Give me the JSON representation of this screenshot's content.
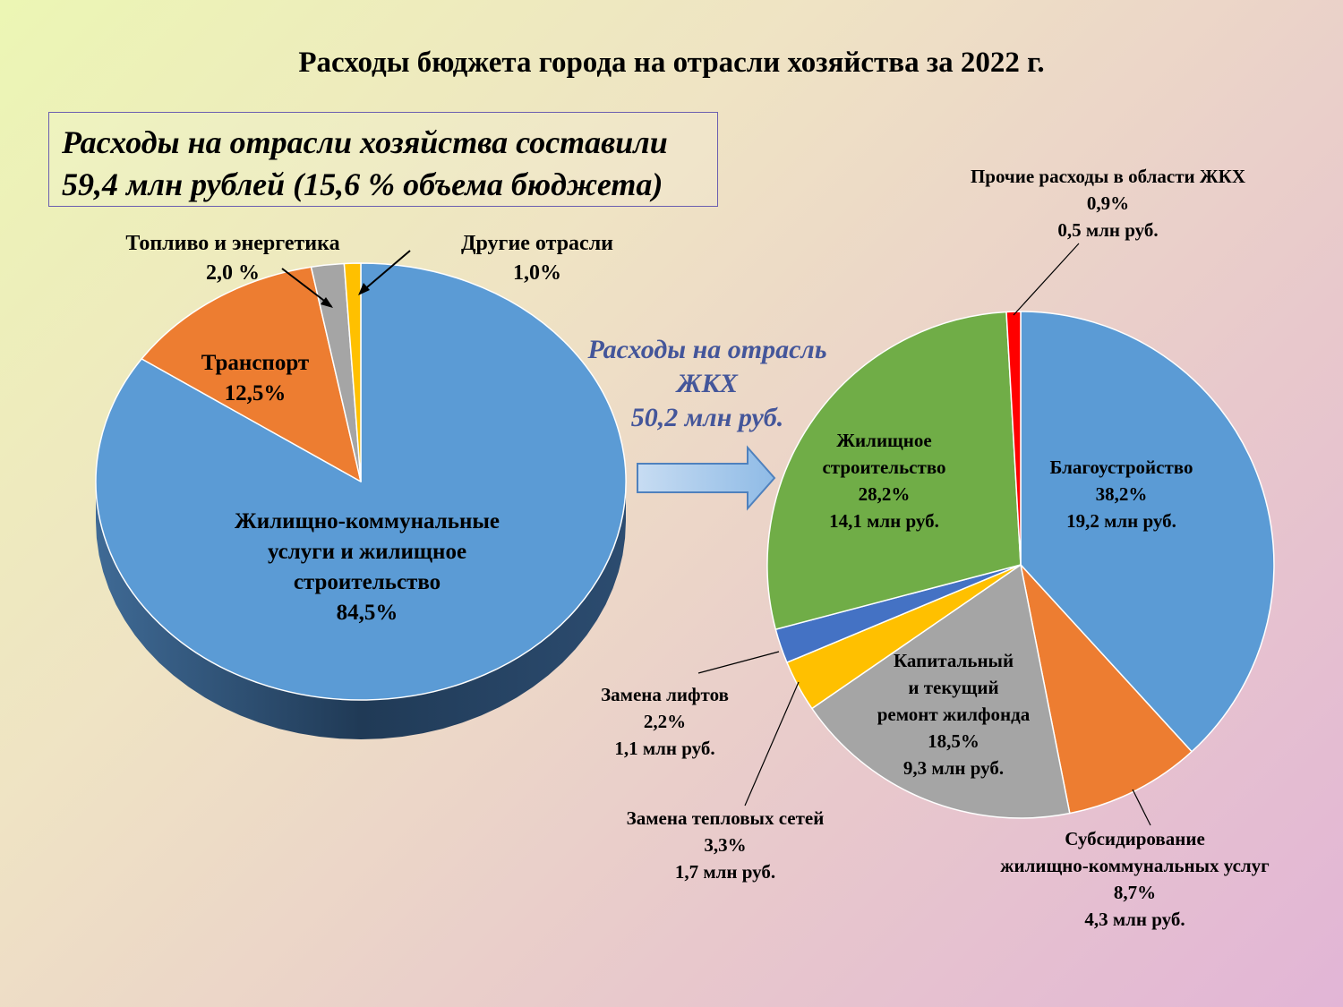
{
  "title": "Расходы бюджета города на отрасли хозяйства за 2022 г.",
  "callout": {
    "line1": "Расходы на отрасли хозяйства составили",
    "line2": "59,4 млн рублей  (15,6 % объема бюджета)"
  },
  "jkx_heading": {
    "line1": "Расходы на отрасль",
    "line2": "ЖКХ",
    "line3": "50,2 млн руб."
  },
  "colors": {
    "blue": "#5b9bd5",
    "orange": "#ed7d31",
    "gray": "#a5a5a5",
    "yellow": "#ffc000",
    "green": "#70ad47",
    "dark_blue": "#4472c4",
    "red": "#ff0000",
    "heading_blue": "#44569a"
  },
  "chart_data": [
    {
      "type": "pie",
      "title": "",
      "slices": [
        {
          "label": "Жилищно-коммунальные услуги и жилищное строительство",
          "value": 84.5,
          "text": [
            "Жилищно-коммунальные",
            "услуги и жилищное",
            "строительство",
            "84,5%"
          ],
          "color": "#5b9bd5"
        },
        {
          "label": "Транспорт",
          "value": 12.5,
          "text": [
            "Транспорт",
            "12,5%"
          ],
          "color": "#ed7d31"
        },
        {
          "label": "Топливо и энергетика",
          "value": 2.0,
          "text": [
            "Топливо и энергетика",
            "2,0 %"
          ],
          "color": "#a5a5a5"
        },
        {
          "label": "Другие отрасли",
          "value": 1.0,
          "text": [
            "Другие отрасли",
            "1,0%"
          ],
          "color": "#ffc000"
        }
      ]
    },
    {
      "type": "pie",
      "title": "",
      "unit": "млн руб.",
      "slices": [
        {
          "label": "Благоустройство",
          "value": 38.2,
          "amount": 19.2,
          "text": [
            "Благоустройство",
            "38,2%",
            "19,2 млн руб."
          ],
          "color": "#5b9bd5"
        },
        {
          "label": "Субсидирование жилищно-коммунальных услуг",
          "value": 8.7,
          "amount": 4.3,
          "text": [
            "Субсидирование",
            "жилищно-коммунальных услуг",
            "8,7%",
            "4,3 млн руб."
          ],
          "color": "#ed7d31"
        },
        {
          "label": "Капитальный и текущий ремонт жилфонда",
          "value": 18.5,
          "amount": 9.3,
          "text": [
            "Капитальный",
            "и текущий",
            "ремонт жилфонда",
            "18,5%",
            "9,3 млн руб."
          ],
          "color": "#a5a5a5"
        },
        {
          "label": "Замена тепловых сетей",
          "value": 3.3,
          "amount": 1.7,
          "text": [
            "Замена тепловых сетей",
            "3,3%",
            "1,7 млн руб."
          ],
          "color": "#ffc000"
        },
        {
          "label": "Замена лифтов",
          "value": 2.2,
          "amount": 1.1,
          "text": [
            "Замена лифтов",
            "2,2%",
            "1,1 млн руб."
          ],
          "color": "#4472c4"
        },
        {
          "label": "Жилищное строительство",
          "value": 28.2,
          "amount": 14.1,
          "text": [
            "Жилищное",
            "строительство",
            "28,2%",
            "14,1 млн руб."
          ],
          "color": "#70ad47"
        },
        {
          "label": "Прочие расходы в области ЖКХ",
          "value": 0.9,
          "amount": 0.5,
          "text": [
            "Прочие расходы в области ЖКХ",
            "0,9%",
            "0,5 млн руб."
          ],
          "color": "#ff0000"
        }
      ]
    }
  ]
}
